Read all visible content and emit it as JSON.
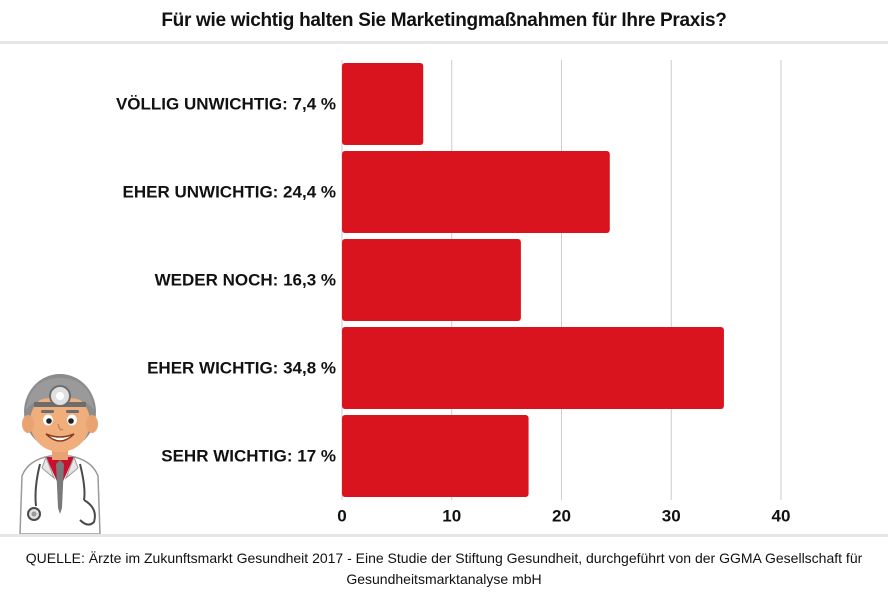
{
  "chart_data": {
    "type": "bar",
    "orientation": "horizontal",
    "title": "Für wie wichtig halten Sie Marketingmaßnahmen für Ihre Praxis?",
    "categories": [
      "VÖLLIG UNWICHTIG: 7,4 %",
      "EHER UNWICHTIG: 24,4 %",
      "WEDER NOCH: 16,3 %",
      "EHER WICHTIG: 34,8 %",
      "SEHR WICHTIG: 17 %"
    ],
    "values": [
      7.4,
      24.4,
      16.3,
      34.8,
      17
    ],
    "xlim": [
      0,
      40
    ],
    "xticks": [
      "0",
      "10",
      "20",
      "30",
      "40"
    ],
    "xtick_values": [
      0,
      10,
      20,
      30,
      40
    ],
    "grid": "vertical",
    "legend": "none",
    "bar_color": "#d9141e",
    "grid_color": "#cccccc"
  },
  "footer": {
    "source": "QUELLE: Ärzte im Zukunftsmarkt Gesundheit 2017 - Eine Studie der Stiftung Gesundheit, durchgeführt von der GGMA Gesellschaft für Gesundheitsmarktanalyse mbH"
  },
  "illustration": {
    "icon": "doctor-illustration"
  }
}
